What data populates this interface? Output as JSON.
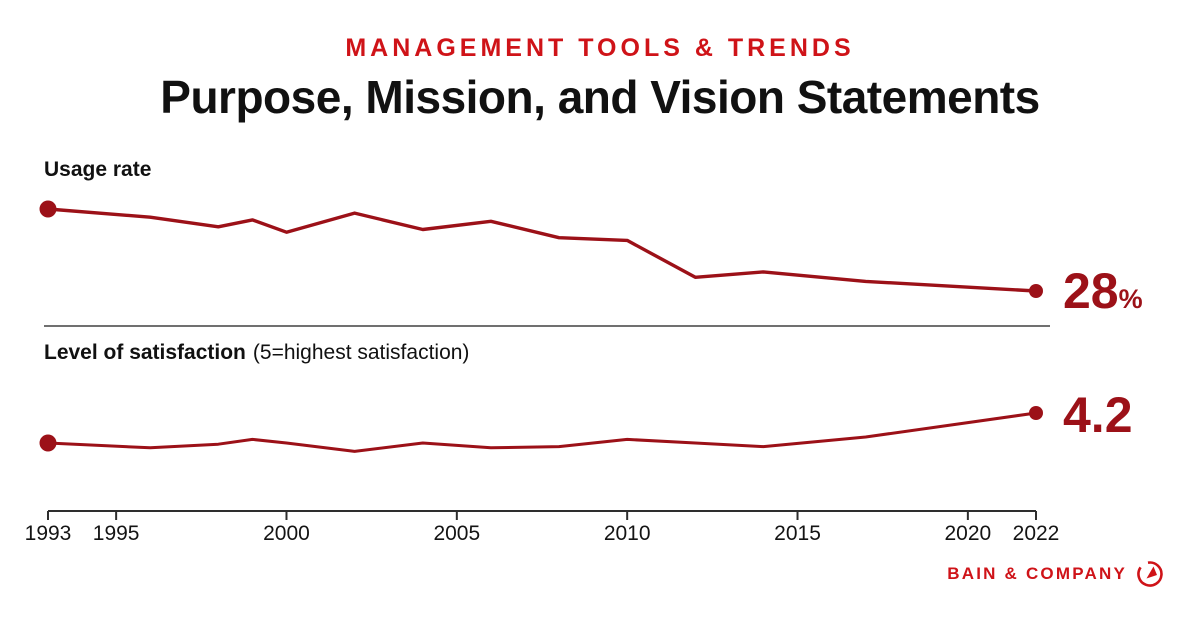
{
  "header": {
    "eyebrow": "MANAGEMENT TOOLS & TRENDS",
    "title": "Purpose, Mission, and Vision Statements"
  },
  "charts": {
    "usage": {
      "label": "Usage rate",
      "end_value": "28",
      "end_unit": "%"
    },
    "satisfaction": {
      "label": "Level of satisfaction",
      "note": "(5=highest satisfaction)",
      "end_value": "4.2"
    }
  },
  "x_axis": {
    "ticks": [
      1993,
      1995,
      2000,
      2005,
      2010,
      2015,
      2020,
      2022
    ],
    "tick_labels": [
      "1993",
      "1995",
      "2000",
      "2005",
      "2010",
      "2015",
      "2020",
      "2022"
    ],
    "range": [
      1993,
      2022
    ]
  },
  "footer": {
    "brand": "BAIN & COMPANY"
  },
  "colors": {
    "brand_red": "#cf1318",
    "line_red": "#9c1118",
    "title_black": "#111111",
    "axis_gray": "#2e2e2e",
    "divider_gray": "#404040"
  },
  "chart_data": [
    {
      "type": "line",
      "title": "Usage rate",
      "x": [
        1993,
        1996,
        1998,
        1999,
        2000,
        2002,
        2004,
        2006,
        2008,
        2010,
        2012,
        2014,
        2017,
        2022
      ],
      "values": [
        88,
        82,
        75,
        80,
        71,
        85,
        73,
        79,
        67,
        65,
        38,
        42,
        35,
        28
      ],
      "unit": "%",
      "end_label": "28%",
      "xlim": [
        1993,
        2022
      ],
      "ylim": [
        25,
        95
      ],
      "y_axis": "hidden",
      "grid": "off",
      "start_marker": true,
      "end_marker": true
    },
    {
      "type": "line",
      "title": "Level of satisfaction",
      "subtitle": "(5=highest satisfaction)",
      "x": [
        1993,
        1996,
        1998,
        1999,
        2000,
        2002,
        2004,
        2006,
        2008,
        2010,
        2012,
        2014,
        2017,
        2022
      ],
      "values": [
        3.95,
        3.91,
        3.94,
        3.98,
        3.95,
        3.88,
        3.95,
        3.91,
        3.92,
        3.98,
        3.95,
        3.92,
        4.0,
        4.2
      ],
      "scale_max": 5,
      "end_label": "4.2",
      "xlim": [
        1993,
        2022
      ],
      "y_axis": "hidden",
      "grid": "off",
      "start_marker": true,
      "end_marker": true
    }
  ]
}
